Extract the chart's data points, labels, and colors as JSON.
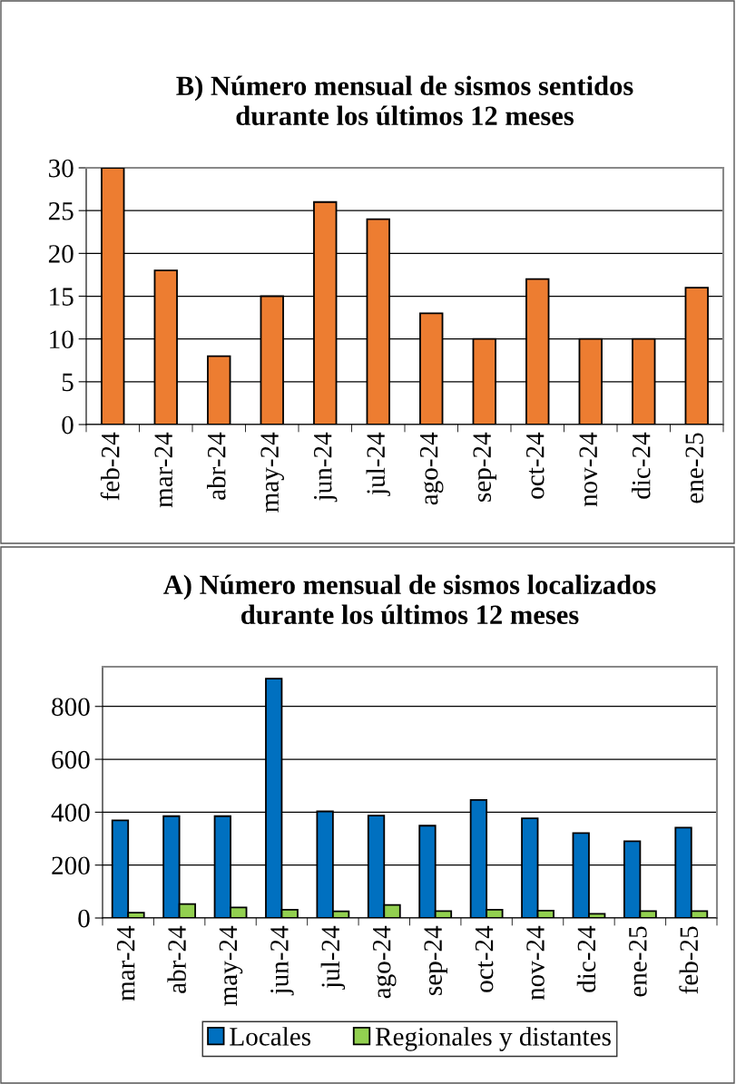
{
  "chart_data": [
    {
      "type": "bar",
      "title": "B) Número mensual de sismos sentidos\ndurante los últimos 12 meses",
      "categories": [
        "feb-24",
        "mar-24",
        "abr-24",
        "may-24",
        "jun-24",
        "jul-24",
        "ago-24",
        "sep-24",
        "oct-24",
        "nov-24",
        "dic-24",
        "ene-25"
      ],
      "series": [
        {
          "color": "#ed7d31",
          "values": [
            30,
            18,
            8,
            15,
            26,
            24,
            13,
            10,
            17,
            10,
            10,
            16
          ]
        }
      ],
      "ylim": [
        0,
        30
      ],
      "yticks": [
        0,
        5,
        10,
        15,
        20,
        25,
        30
      ],
      "grid": "y",
      "legend": false
    },
    {
      "type": "bar",
      "title": "A) Número mensual de sismos localizados\ndurante los últimos 12 meses",
      "categories": [
        "mar-24",
        "abr-24",
        "may-24",
        "jun-24",
        "jul-24",
        "ago-24",
        "sep-24",
        "oct-24",
        "nov-24",
        "dic-24",
        "ene-25",
        "feb-25"
      ],
      "series": [
        {
          "name": "Locales",
          "color": "#0070c0",
          "values": [
            369,
            385,
            385,
            905,
            403,
            387,
            349,
            446,
            377,
            321,
            290,
            342
          ]
        },
        {
          "name": "Regionales y distantes",
          "color": "#92d050",
          "values": [
            20,
            53,
            40,
            31,
            25,
            49,
            26,
            31,
            28,
            16,
            26,
            26
          ]
        }
      ],
      "ylim": [
        0,
        950
      ],
      "yticks": [
        0,
        200,
        400,
        600,
        800
      ],
      "grid": "y",
      "legend": "bottom"
    }
  ]
}
